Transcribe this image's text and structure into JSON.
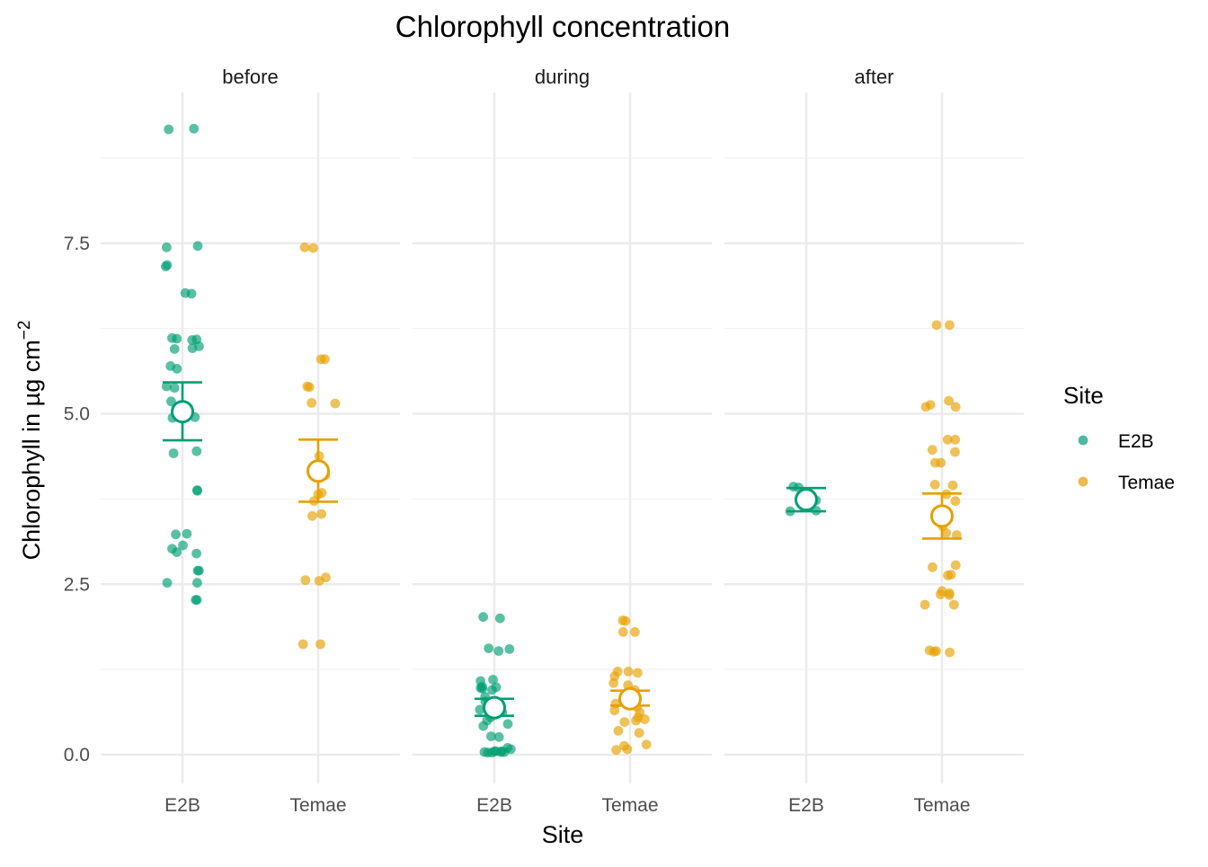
{
  "chart_data": {
    "type": "scatter",
    "title": "Chlorophyll concentration",
    "xlabel": "Site",
    "ylabel": "Chlorophyll in µg cm",
    "ylabel_superscript": "−2",
    "categories": [
      "E2B",
      "Temae"
    ],
    "ylim": [
      -0.7,
      9.5
    ],
    "y_ticks": [
      0,
      2.5,
      5,
      7.5
    ],
    "y_tick_labels": [
      "0.0",
      "2.5",
      "5.0",
      "7.5"
    ],
    "grid": true,
    "legend": {
      "title": "Site",
      "placement": "right",
      "entries": [
        {
          "name": "E2B",
          "color": "#009E73"
        },
        {
          "name": "Temae",
          "color": "#E69F00"
        }
      ]
    },
    "facets": [
      {
        "label": "before",
        "groups": [
          {
            "site": "E2B",
            "color": "#009E73",
            "mean": 5.03,
            "lower": 4.61,
            "upper": 5.46,
            "points": [
              9.17,
              9.18,
              7.46,
              7.44,
              7.16,
              7.18,
              6.76,
              6.77,
              6.09,
              6.08,
              6.1,
              6.11,
              5.95,
              5.96,
              5.99,
              5.7,
              5.66,
              5.4,
              5.38,
              5.18,
              4.95,
              4.94,
              4.45,
              4.42,
              3.88,
              3.87,
              3.23,
              3.24,
              3.07,
              3.02,
              2.95,
              2.97,
              2.7,
              2.7,
              2.52,
              2.52,
              2.27,
              2.27
            ]
          },
          {
            "site": "Temae",
            "color": "#E69F00",
            "mean": 4.16,
            "lower": 3.71,
            "upper": 4.62,
            "points": [
              7.43,
              7.44,
              5.8,
              5.8,
              5.39,
              5.4,
              5.15,
              5.16,
              4.38,
              4.1,
              3.84,
              3.82,
              3.72,
              3.53,
              3.5,
              2.6,
              2.56,
              2.55,
              1.62,
              1.62
            ]
          }
        ]
      },
      {
        "label": "during",
        "groups": [
          {
            "site": "E2B",
            "color": "#009E73",
            "mean": 0.69,
            "lower": 0.57,
            "upper": 0.82,
            "points": [
              2.02,
              2.0,
              1.55,
              1.56,
              1.52,
              1.1,
              1.08,
              1.0,
              0.99,
              0.98,
              0.97,
              0.95,
              0.85,
              0.78,
              0.72,
              0.66,
              0.62,
              0.6,
              0.55,
              0.5,
              0.45,
              0.42,
              0.27,
              0.26,
              0.1,
              0.08,
              0.05,
              0.05,
              0.04,
              0.04,
              0.03,
              0.03,
              0.04,
              0.05
            ]
          },
          {
            "site": "Temae",
            "color": "#E69F00",
            "mean": 0.82,
            "lower": 0.72,
            "upper": 0.94,
            "points": [
              1.97,
              1.96,
              1.8,
              1.8,
              1.22,
              1.22,
              1.2,
              1.15,
              1.05,
              1.02,
              0.95,
              0.9,
              0.82,
              0.75,
              0.7,
              0.65,
              0.62,
              0.55,
              0.52,
              0.5,
              0.48,
              0.35,
              0.32,
              0.15,
              0.13,
              0.08,
              0.07
            ]
          }
        ]
      },
      {
        "label": "after",
        "groups": [
          {
            "site": "E2B",
            "color": "#009E73",
            "mean": 3.74,
            "lower": 3.57,
            "upper": 3.91,
            "points": [
              3.93,
              3.92,
              3.58,
              3.57,
              3.75,
              3.73
            ]
          },
          {
            "site": "Temae",
            "color": "#E69F00",
            "mean": 3.5,
            "lower": 3.17,
            "upper": 3.83,
            "points": [
              6.3,
              6.3,
              5.19,
              5.13,
              5.1,
              5.1,
              4.62,
              4.62,
              4.47,
              4.44,
              4.28,
              4.28,
              3.96,
              3.95,
              3.82,
              3.72,
              3.35,
              3.25,
              3.22,
              2.78,
              2.75,
              2.64,
              2.63,
              2.4,
              2.37,
              2.35,
              2.34,
              2.2,
              2.2,
              1.53,
              1.52,
              1.51,
              1.5
            ]
          }
        ]
      }
    ]
  }
}
